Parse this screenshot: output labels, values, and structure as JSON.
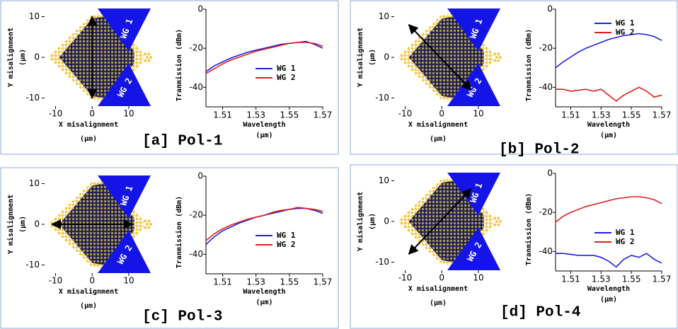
{
  "panels": [
    {
      "caption": "[a] Pol-1",
      "diagram": {
        "xlabel": "X misalignment",
        "xunit": "(μm)",
        "ylabel": "Y misalignment",
        "yunit": "(μm)",
        "xlim": [
          -13,
          16
        ],
        "ylim": [
          -12,
          12
        ],
        "xticks": [
          -10,
          0,
          10
        ],
        "yticks": [
          -10,
          0,
          10
        ],
        "labels": [
          "WG 1",
          "WG 2"
        ]
      }
    },
    {
      "caption": "[b] Pol-2",
      "diagram": {
        "xlabel": "X misalignment",
        "xunit": "(μm)",
        "ylabel": "Y misalignment",
        "yunit": "(μm)",
        "xlim": [
          -13,
          16
        ],
        "ylim": [
          -12,
          12
        ],
        "xticks": [
          -10,
          0,
          10
        ],
        "yticks": [
          -10,
          0,
          10
        ],
        "labels": [
          "WG 1",
          "WG 2"
        ]
      }
    },
    {
      "caption": "[c] Pol-3",
      "diagram": {
        "xlabel": "X misalignment",
        "xunit": "(μm)",
        "ylabel": "Y misalignment",
        "yunit": "(μm)",
        "xlim": [
          -13,
          16
        ],
        "ylim": [
          -12,
          12
        ],
        "xticks": [
          -10,
          0,
          10
        ],
        "yticks": [
          -10,
          0,
          10
        ],
        "labels": [
          "WG 1",
          "WG 2"
        ]
      }
    },
    {
      "caption": "[d] Pol-4",
      "diagram": {
        "xlabel": "X misalignment",
        "xunit": "(μm)",
        "ylabel": "Y misalignment",
        "yunit": "(μm)",
        "xlim": [
          -13,
          16
        ],
        "ylim": [
          -12,
          12
        ],
        "xticks": [
          -10,
          0,
          10
        ],
        "yticks": [
          -10,
          0,
          10
        ],
        "labels": [
          "WG 1",
          "WG 2"
        ]
      }
    }
  ],
  "chart_data": [
    {
      "type": "line",
      "xlabel": "Wavelength",
      "xunit": "(μm)",
      "ylabel": "Tranmission (dBm)",
      "legend": "center right",
      "x": [
        1.5,
        1.505,
        1.51,
        1.515,
        1.52,
        1.525,
        1.53,
        1.535,
        1.54,
        1.545,
        1.55,
        1.555,
        1.56,
        1.565,
        1.57
      ],
      "xlim": [
        1.5,
        1.57
      ],
      "xticks": [
        1.51,
        1.53,
        1.55,
        1.57
      ],
      "ylim": [
        -50,
        0
      ],
      "yticks": [
        -40,
        -20,
        0
      ],
      "series": [
        {
          "name": "WG 1",
          "color": "#1f1fe0",
          "values": [
            -32,
            -29,
            -27,
            -25,
            -23.5,
            -22,
            -21,
            -20,
            -19,
            -18,
            -17.5,
            -17,
            -16.5,
            -18,
            -20
          ]
        },
        {
          "name": "WG 2",
          "color": "#e01f1f",
          "values": [
            -33,
            -30.5,
            -28,
            -26,
            -24.5,
            -23,
            -21.5,
            -20.5,
            -19.5,
            -18.5,
            -17.5,
            -17,
            -17,
            -17.5,
            -19
          ]
        }
      ]
    },
    {
      "type": "line",
      "xlabel": "Wavelength",
      "xunit": "(μm)",
      "ylabel": "Tranmission (dBm)",
      "legend": "upper right",
      "x": [
        1.5,
        1.505,
        1.51,
        1.515,
        1.52,
        1.525,
        1.53,
        1.535,
        1.54,
        1.545,
        1.55,
        1.555,
        1.56,
        1.565,
        1.57
      ],
      "xlim": [
        1.5,
        1.57
      ],
      "xticks": [
        1.51,
        1.53,
        1.55,
        1.57
      ],
      "ylim": [
        -50,
        0
      ],
      "yticks": [
        -40,
        -20,
        0
      ],
      "series": [
        {
          "name": "WG 1",
          "color": "#1f1fe0",
          "values": [
            -30,
            -27,
            -24.5,
            -22,
            -20,
            -18.5,
            -17,
            -15.5,
            -14.5,
            -13.5,
            -13,
            -12.5,
            -13,
            -14,
            -16
          ]
        },
        {
          "name": "WG 2",
          "color": "#e01f1f",
          "values": [
            -41,
            -41,
            -42,
            -41.5,
            -41,
            -42,
            -41,
            -44,
            -47,
            -44,
            -42,
            -40,
            -42,
            -45,
            -44
          ]
        }
      ]
    },
    {
      "type": "line",
      "xlabel": "Wavelength",
      "xunit": "(μm)",
      "ylabel": "Tranmission (dBm)",
      "legend": "center right",
      "x": [
        1.5,
        1.505,
        1.51,
        1.515,
        1.52,
        1.525,
        1.53,
        1.535,
        1.54,
        1.545,
        1.55,
        1.555,
        1.56,
        1.565,
        1.57
      ],
      "xlim": [
        1.5,
        1.57
      ],
      "xticks": [
        1.51,
        1.53,
        1.55,
        1.57
      ],
      "ylim": [
        -50,
        0
      ],
      "yticks": [
        -40,
        -20,
        0
      ],
      "series": [
        {
          "name": "WG 1",
          "color": "#1f1fe0",
          "values": [
            -35,
            -31,
            -28,
            -26,
            -24,
            -22.5,
            -21,
            -20,
            -19,
            -18,
            -17,
            -16.5,
            -16.5,
            -17.5,
            -19
          ]
        },
        {
          "name": "WG 2",
          "color": "#e01f1f",
          "values": [
            -33,
            -29.5,
            -27,
            -25,
            -23.5,
            -22,
            -21,
            -20,
            -18.5,
            -17.5,
            -17,
            -16,
            -16.5,
            -17,
            -18
          ]
        }
      ]
    },
    {
      "type": "line",
      "xlabel": "Wavelength",
      "xunit": "(μm)",
      "ylabel": "Tranmission (dBm)",
      "legend": "center right",
      "x": [
        1.5,
        1.505,
        1.51,
        1.515,
        1.52,
        1.525,
        1.53,
        1.535,
        1.54,
        1.545,
        1.55,
        1.555,
        1.56,
        1.565,
        1.57
      ],
      "xlim": [
        1.5,
        1.57
      ],
      "xticks": [
        1.51,
        1.53,
        1.55,
        1.57
      ],
      "ylim": [
        -50,
        0
      ],
      "yticks": [
        -40,
        -20,
        0
      ],
      "series": [
        {
          "name": "WG 1",
          "color": "#1f1fe0",
          "values": [
            -41,
            -41,
            -41.5,
            -42,
            -42,
            -42,
            -43,
            -45,
            -48,
            -44,
            -42,
            -43,
            -41,
            -44,
            -46
          ]
        },
        {
          "name": "WG 2",
          "color": "#e01f1f",
          "values": [
            -25,
            -22,
            -20,
            -18.5,
            -17,
            -16,
            -15,
            -14,
            -13,
            -12.5,
            -12,
            -12,
            -12.5,
            -13.5,
            -15.5
          ]
        }
      ]
    }
  ]
}
